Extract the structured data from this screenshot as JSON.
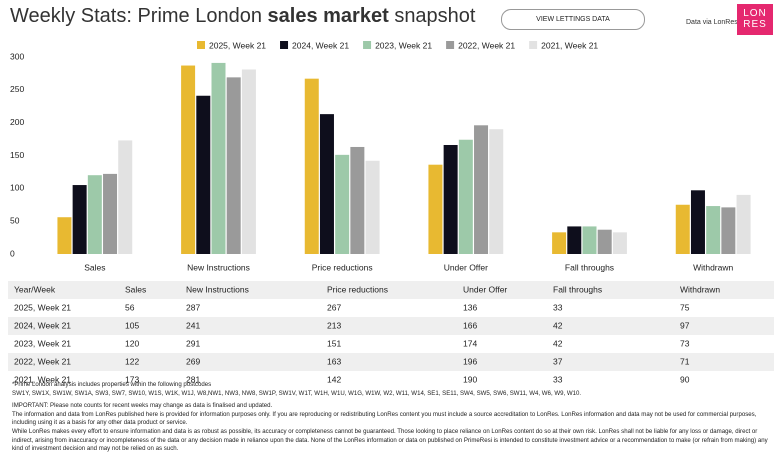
{
  "header": {
    "title_start": "Weekly Stats: Prime London",
    "title_bold": "sales market",
    "title_end": "snapshot",
    "button": "VIEW LETTINGS DATA",
    "source": "Data via LonRes",
    "logo": [
      "LON",
      "RES"
    ]
  },
  "chart_data": {
    "type": "bar",
    "categories": [
      "Sales",
      "New Instructions",
      "Price reductions",
      "Under Offer",
      "Fall throughs",
      "Withdrawn"
    ],
    "series": [
      {
        "name": "2025, Week 21",
        "color": "#e8b931",
        "values": [
          56,
          287,
          267,
          136,
          33,
          75
        ]
      },
      {
        "name": "2024, Week 21",
        "color": "#0e0e1c",
        "values": [
          105,
          241,
          213,
          166,
          42,
          97
        ]
      },
      {
        "name": "2023, Week 21",
        "color": "#9dc9a9",
        "values": [
          120,
          291,
          151,
          174,
          42,
          73
        ]
      },
      {
        "name": "2022, Week 21",
        "color": "#9a9a9a",
        "values": [
          122,
          269,
          163,
          196,
          37,
          71
        ]
      },
      {
        "name": "2021, Week 21",
        "color": "#e2e2e2",
        "values": [
          173,
          281,
          142,
          190,
          33,
          90
        ]
      }
    ],
    "ylim": [
      0,
      300
    ],
    "yticks": [
      0,
      50,
      100,
      150,
      200,
      250,
      300
    ],
    "grid": false
  },
  "table": {
    "first_header": "Year/Week"
  },
  "notes": [
    "*Prime London analysis includes properties within the following postcodes",
    "SW1Y, SW1X, SW1W, SW1A, SW3, SW7, SW10, W1S, W1K, W1J, W8,NW1, NW3, NW8, SW1P, SW1V, W1T, W1H, W1U, W1G, W1W, W2, W11, W14, SE1, SE11, SW4, SW5, SW6, SW11, W4, W6, W9, W10.",
    "IMPORTANT: Please note counts for recent weeks may change as data is finalised and updated.",
    "The information and data from LonRes published here is provided for information purposes only. If you are reproducing or redistributing LonRes content you must include a source accreditation to LonRes. LonRes information and data may not be used for commercial purposes, including using it as a basis for any other data product or service.",
    "While LonRes makes every effort to ensure information and data is as robust as possible, its accuracy or completeness cannot be guaranteed. Those looking to place reliance on LonRes content do so at their own risk. LonRes shall not be liable for any loss or damage, direct or indirect, arising from inaccuracy or incompleteness of the data or any decision made in reliance upon the data. None of the LonRes information or data on published on PrimeResi is intended to constitute investment advice or a recommendation to make (or refrain from making) any kind of investment decision and may not be relied on as such."
  ]
}
